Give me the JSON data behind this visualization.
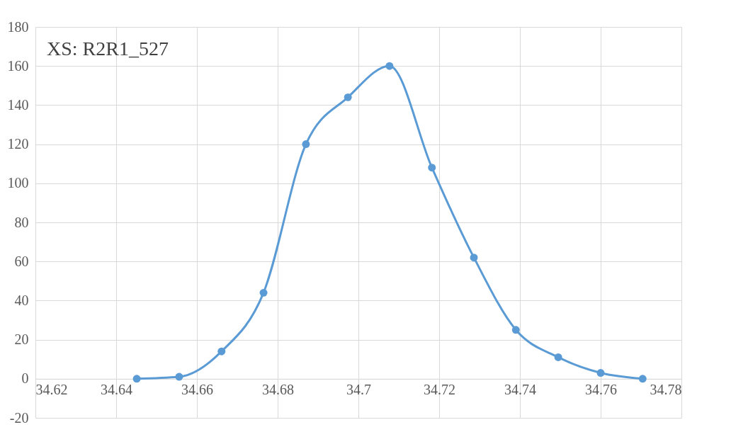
{
  "chart_data": {
    "type": "line",
    "x": [
      34.6451,
      34.6556,
      34.6661,
      34.6765,
      34.687,
      34.6974,
      34.7077,
      34.7182,
      34.7286,
      34.739,
      34.7495,
      34.76,
      34.7704
    ],
    "series": [
      {
        "color": "#5b9bd5",
        "values": [
          0,
          1,
          14,
          44,
          120,
          144,
          160,
          108,
          62,
          25,
          11,
          3,
          0
        ]
      }
    ],
    "xlim": [
      34.62,
      34.78
    ],
    "xticks": [
      34.62,
      34.64,
      34.66,
      34.68,
      34.7,
      34.72,
      34.74,
      34.76,
      34.78
    ],
    "ylim": [
      -20,
      180
    ],
    "yticks": [
      -20,
      0,
      20,
      40,
      60,
      80,
      100,
      120,
      140,
      160,
      180
    ],
    "annotations": [
      "XS: R2R1_527"
    ],
    "grid": true,
    "marker": "circle",
    "line_style": "solid"
  }
}
